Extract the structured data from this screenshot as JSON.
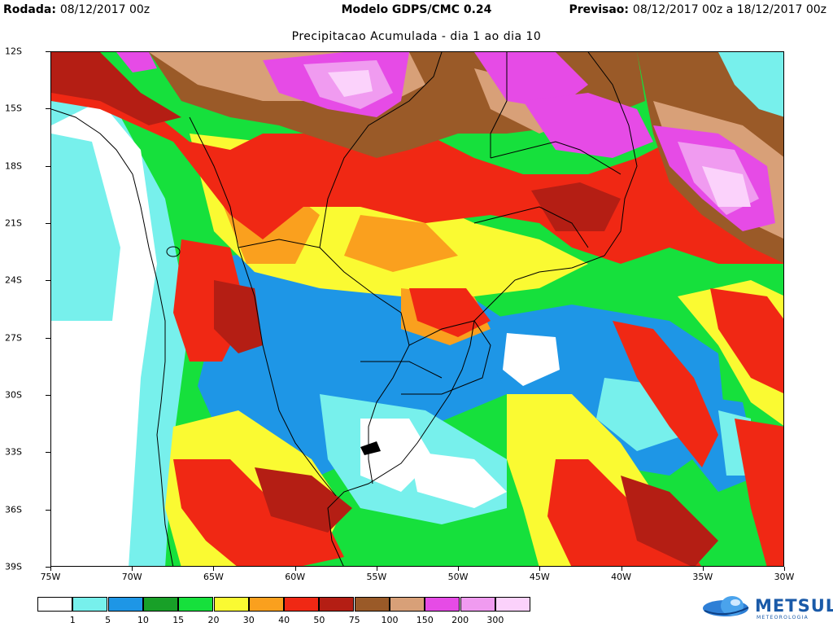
{
  "header": {
    "rodada_label": "Rodada:",
    "rodada_value": "08/12/2017 00z",
    "model": "Modelo GDPS/CMC 0.24",
    "previsao_label": "Previsao:",
    "previsao_value": "08/12/2017 00z a 18/12/2017 00z"
  },
  "subtitle": "Precipitacao Acumulada - dia 1 ao dia 10",
  "map": {
    "lat_ticks": [
      "12S",
      "15S",
      "18S",
      "21S",
      "24S",
      "27S",
      "30S",
      "33S",
      "36S",
      "39S"
    ],
    "lon_ticks": [
      "75W",
      "70W",
      "65W",
      "60W",
      "55W",
      "50W",
      "45W",
      "40W",
      "35W",
      "30W"
    ],
    "lat_range": [
      -12,
      -39
    ],
    "lon_range": [
      -75,
      -30
    ]
  },
  "legend": {
    "levels": [
      "1",
      "5",
      "10",
      "15",
      "20",
      "30",
      "40",
      "50",
      "75",
      "100",
      "150",
      "200",
      "300"
    ],
    "colors": [
      "#ffffff",
      "#77f0ec",
      "#1e96e6",
      "#18a028",
      "#16e03c",
      "#fafa32",
      "#faa01e",
      "#f02814",
      "#b41e14",
      "#9a5a28",
      "#d8a078",
      "#e64be6",
      "#f09bf0",
      "#fbd2fb"
    ]
  },
  "logo": {
    "name": "METSUL",
    "tagline": "METEOROLOGIA"
  }
}
